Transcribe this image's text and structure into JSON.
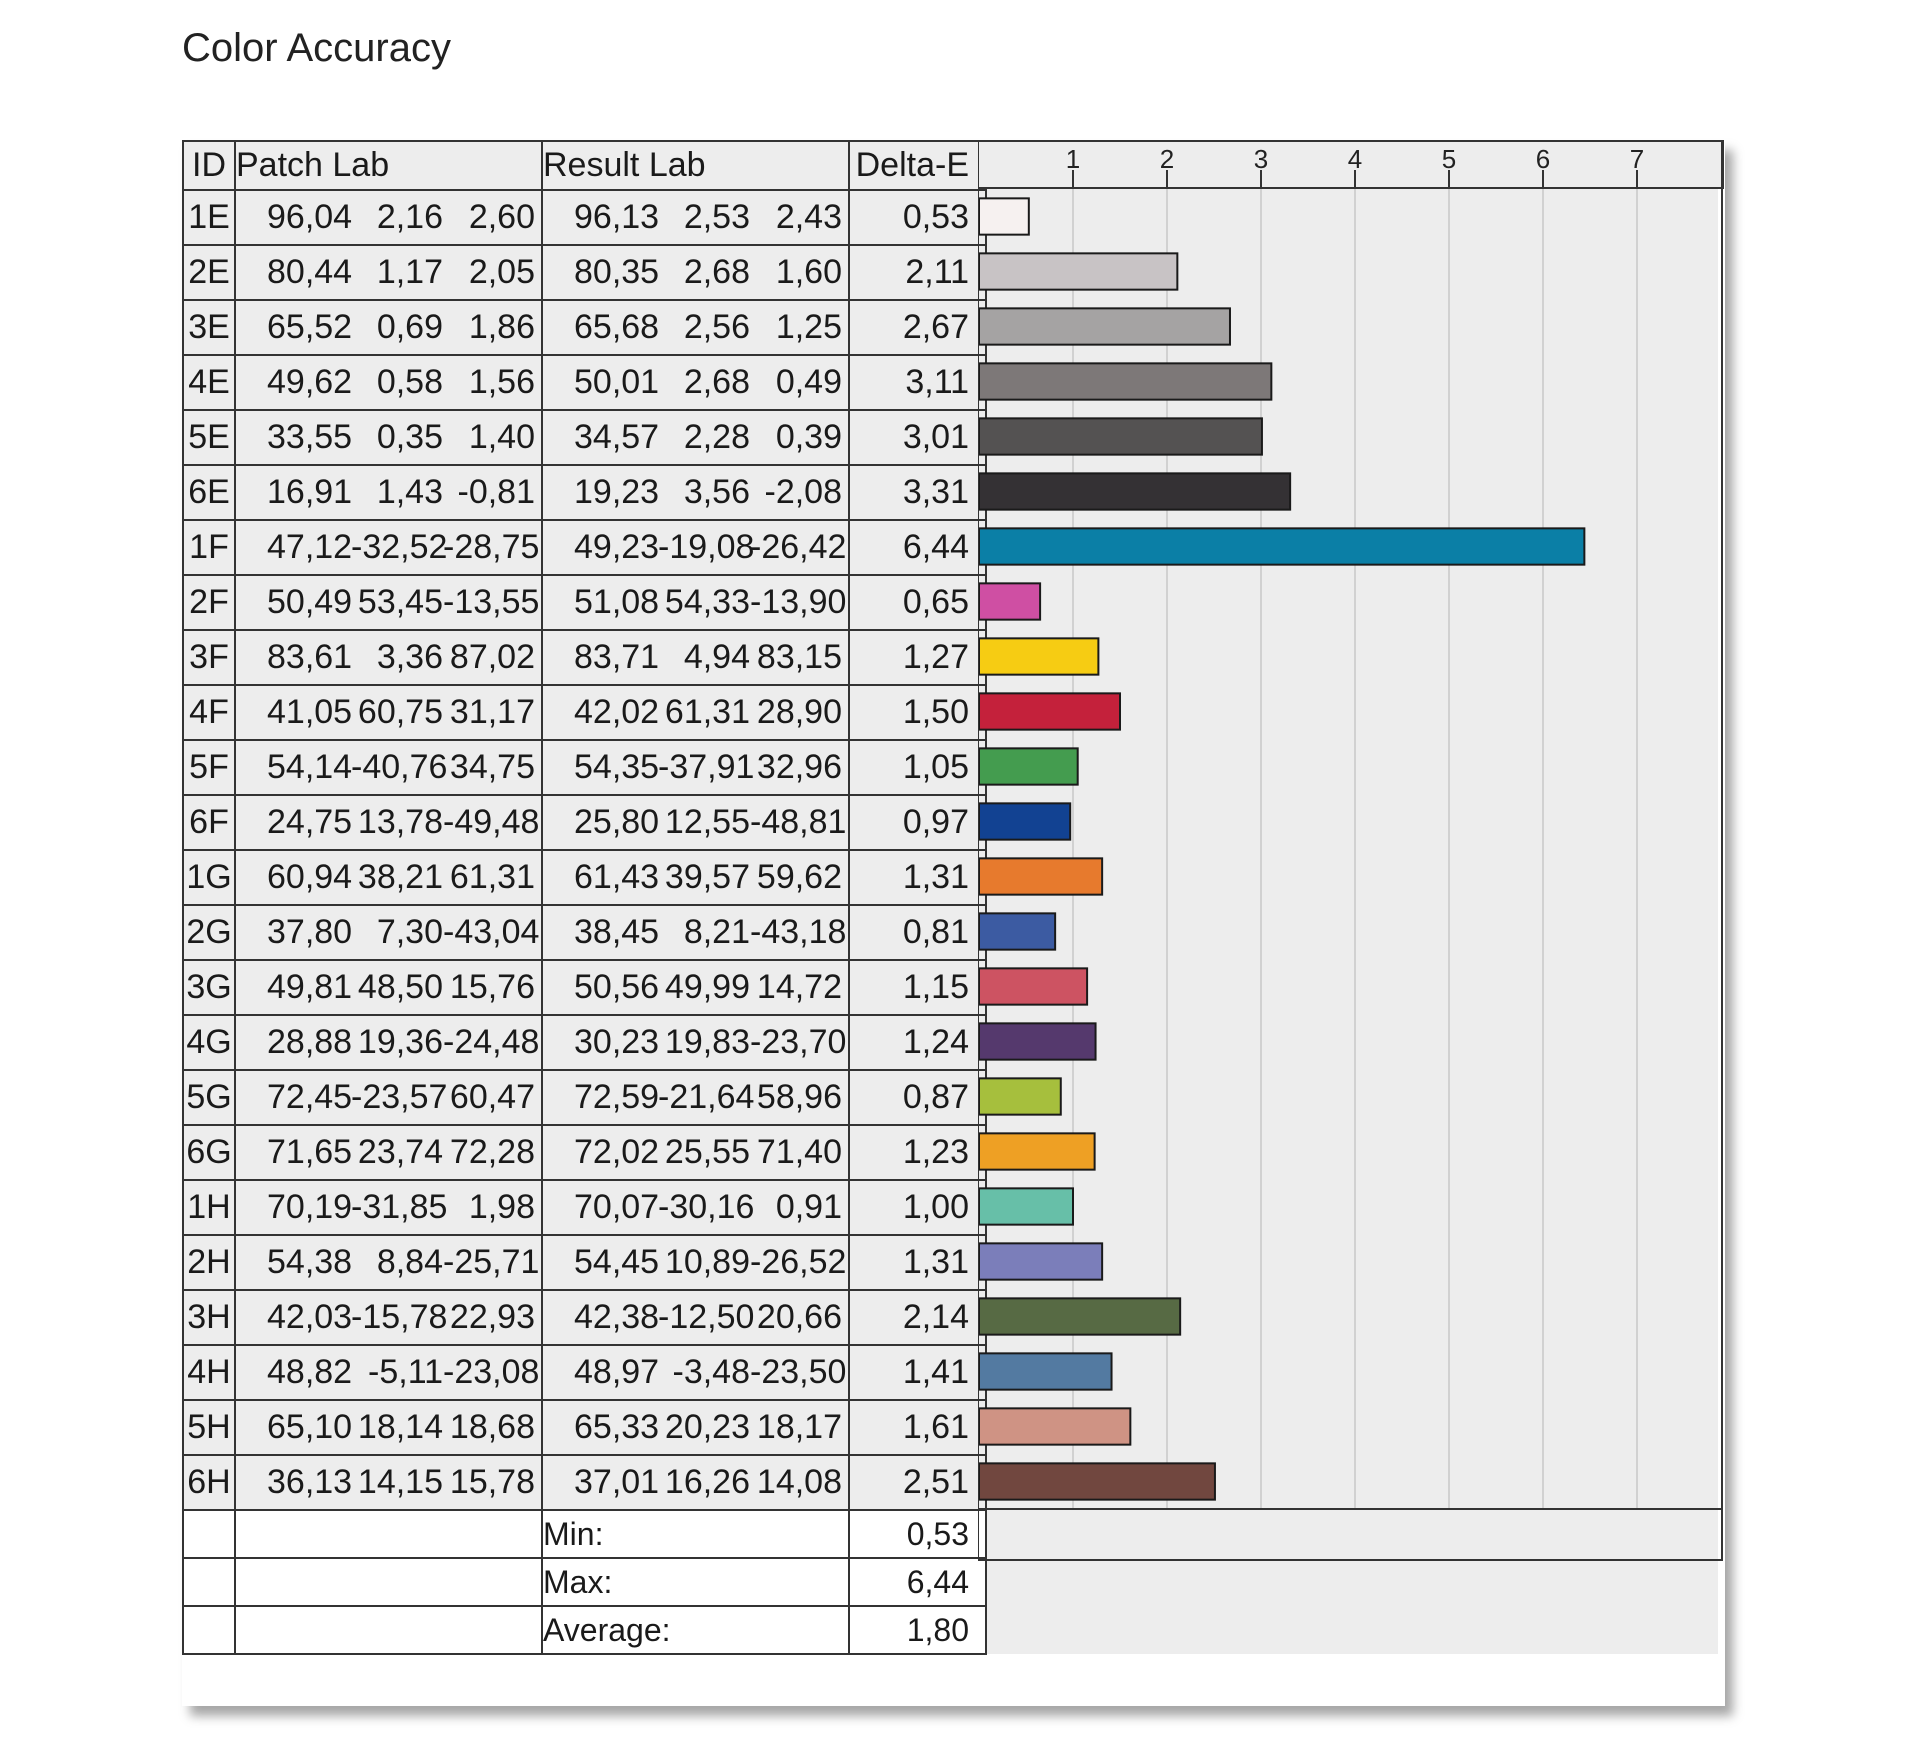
{
  "title": "Color Accuracy",
  "headers": {
    "id": "ID",
    "patch": "Patch Lab",
    "result": "Result Lab",
    "delta": "Delta-E"
  },
  "rows": [
    {
      "id": "1E",
      "patch": [
        "96,04",
        "2,16",
        "2,60"
      ],
      "result": [
        "96,13",
        "2,53",
        "2,43"
      ],
      "de": "0,53"
    },
    {
      "id": "2E",
      "patch": [
        "80,44",
        "1,17",
        "2,05"
      ],
      "result": [
        "80,35",
        "2,68",
        "1,60"
      ],
      "de": "2,11"
    },
    {
      "id": "3E",
      "patch": [
        "65,52",
        "0,69",
        "1,86"
      ],
      "result": [
        "65,68",
        "2,56",
        "1,25"
      ],
      "de": "2,67"
    },
    {
      "id": "4E",
      "patch": [
        "49,62",
        "0,58",
        "1,56"
      ],
      "result": [
        "50,01",
        "2,68",
        "0,49"
      ],
      "de": "3,11"
    },
    {
      "id": "5E",
      "patch": [
        "33,55",
        "0,35",
        "1,40"
      ],
      "result": [
        "34,57",
        "2,28",
        "0,39"
      ],
      "de": "3,01"
    },
    {
      "id": "6E",
      "patch": [
        "16,91",
        "1,43",
        "-0,81"
      ],
      "result": [
        "19,23",
        "3,56",
        "-2,08"
      ],
      "de": "3,31"
    },
    {
      "id": "1F",
      "patch": [
        "47,12",
        "-32,52",
        "-28,75"
      ],
      "result": [
        "49,23",
        "-19,08",
        "-26,42"
      ],
      "de": "6,44"
    },
    {
      "id": "2F",
      "patch": [
        "50,49",
        "53,45",
        "-13,55"
      ],
      "result": [
        "51,08",
        "54,33",
        "-13,90"
      ],
      "de": "0,65"
    },
    {
      "id": "3F",
      "patch": [
        "83,61",
        "3,36",
        "87,02"
      ],
      "result": [
        "83,71",
        "4,94",
        "83,15"
      ],
      "de": "1,27"
    },
    {
      "id": "4F",
      "patch": [
        "41,05",
        "60,75",
        "31,17"
      ],
      "result": [
        "42,02",
        "61,31",
        "28,90"
      ],
      "de": "1,50"
    },
    {
      "id": "5F",
      "patch": [
        "54,14",
        "-40,76",
        "34,75"
      ],
      "result": [
        "54,35",
        "-37,91",
        "32,96"
      ],
      "de": "1,05"
    },
    {
      "id": "6F",
      "patch": [
        "24,75",
        "13,78",
        "-49,48"
      ],
      "result": [
        "25,80",
        "12,55",
        "-48,81"
      ],
      "de": "0,97"
    },
    {
      "id": "1G",
      "patch": [
        "60,94",
        "38,21",
        "61,31"
      ],
      "result": [
        "61,43",
        "39,57",
        "59,62"
      ],
      "de": "1,31"
    },
    {
      "id": "2G",
      "patch": [
        "37,80",
        "7,30",
        "-43,04"
      ],
      "result": [
        "38,45",
        "8,21",
        "-43,18"
      ],
      "de": "0,81"
    },
    {
      "id": "3G",
      "patch": [
        "49,81",
        "48,50",
        "15,76"
      ],
      "result": [
        "50,56",
        "49,99",
        "14,72"
      ],
      "de": "1,15"
    },
    {
      "id": "4G",
      "patch": [
        "28,88",
        "19,36",
        "-24,48"
      ],
      "result": [
        "30,23",
        "19,83",
        "-23,70"
      ],
      "de": "1,24"
    },
    {
      "id": "5G",
      "patch": [
        "72,45",
        "-23,57",
        "60,47"
      ],
      "result": [
        "72,59",
        "-21,64",
        "58,96"
      ],
      "de": "0,87"
    },
    {
      "id": "6G",
      "patch": [
        "71,65",
        "23,74",
        "72,28"
      ],
      "result": [
        "72,02",
        "25,55",
        "71,40"
      ],
      "de": "1,23"
    },
    {
      "id": "1H",
      "patch": [
        "70,19",
        "-31,85",
        "1,98"
      ],
      "result": [
        "70,07",
        "-30,16",
        "0,91"
      ],
      "de": "1,00"
    },
    {
      "id": "2H",
      "patch": [
        "54,38",
        "8,84",
        "-25,71"
      ],
      "result": [
        "54,45",
        "10,89",
        "-26,52"
      ],
      "de": "1,31"
    },
    {
      "id": "3H",
      "patch": [
        "42,03",
        "-15,78",
        "22,93"
      ],
      "result": [
        "42,38",
        "-12,50",
        "20,66"
      ],
      "de": "2,14"
    },
    {
      "id": "4H",
      "patch": [
        "48,82",
        "-5,11",
        "-23,08"
      ],
      "result": [
        "48,97",
        "-3,48",
        "-23,50"
      ],
      "de": "1,41"
    },
    {
      "id": "5H",
      "patch": [
        "65,10",
        "18,14",
        "18,68"
      ],
      "result": [
        "65,33",
        "20,23",
        "18,17"
      ],
      "de": "1,61"
    },
    {
      "id": "6H",
      "patch": [
        "36,13",
        "14,15",
        "15,78"
      ],
      "result": [
        "37,01",
        "16,26",
        "14,08"
      ],
      "de": "2,51"
    }
  ],
  "summary": [
    {
      "label": "Min:",
      "value": "0,53"
    },
    {
      "label": "Max:",
      "value": "6,44"
    },
    {
      "label": "Average:",
      "value": "1,80"
    }
  ],
  "chart_data": {
    "type": "bar",
    "orientation": "horizontal",
    "categories": [
      "1E",
      "2E",
      "3E",
      "4E",
      "5E",
      "6E",
      "1F",
      "2F",
      "3F",
      "4F",
      "5F",
      "6F",
      "1G",
      "2G",
      "3G",
      "4G",
      "5G",
      "6G",
      "1H",
      "2H",
      "3H",
      "4H",
      "5H",
      "6H"
    ],
    "values": [
      0.53,
      2.11,
      2.67,
      3.11,
      3.01,
      3.31,
      6.44,
      0.65,
      1.27,
      1.5,
      1.05,
      0.97,
      1.31,
      0.81,
      1.15,
      1.24,
      0.87,
      1.23,
      1.0,
      1.31,
      2.14,
      1.41,
      1.61,
      2.51
    ],
    "colors": [
      "#f6f1f0",
      "#c8c3c5",
      "#a5a3a3",
      "#7d7878",
      "#545252",
      "#343134",
      "#0b7fa6",
      "#cf4fa3",
      "#f6cc13",
      "#c4213b",
      "#449c4f",
      "#124292",
      "#e77a2d",
      "#3c5ba2",
      "#cd5362",
      "#55396d",
      "#a6bf3d",
      "#eea024",
      "#67bfa8",
      "#7b7eba",
      "#576a44",
      "#537aa1",
      "#cf9384",
      "#71473f"
    ],
    "x_ticks": [
      "1",
      "2",
      "3",
      "4",
      "5",
      "6",
      "7"
    ],
    "xlim": [
      0,
      8
    ],
    "grid": true
  }
}
